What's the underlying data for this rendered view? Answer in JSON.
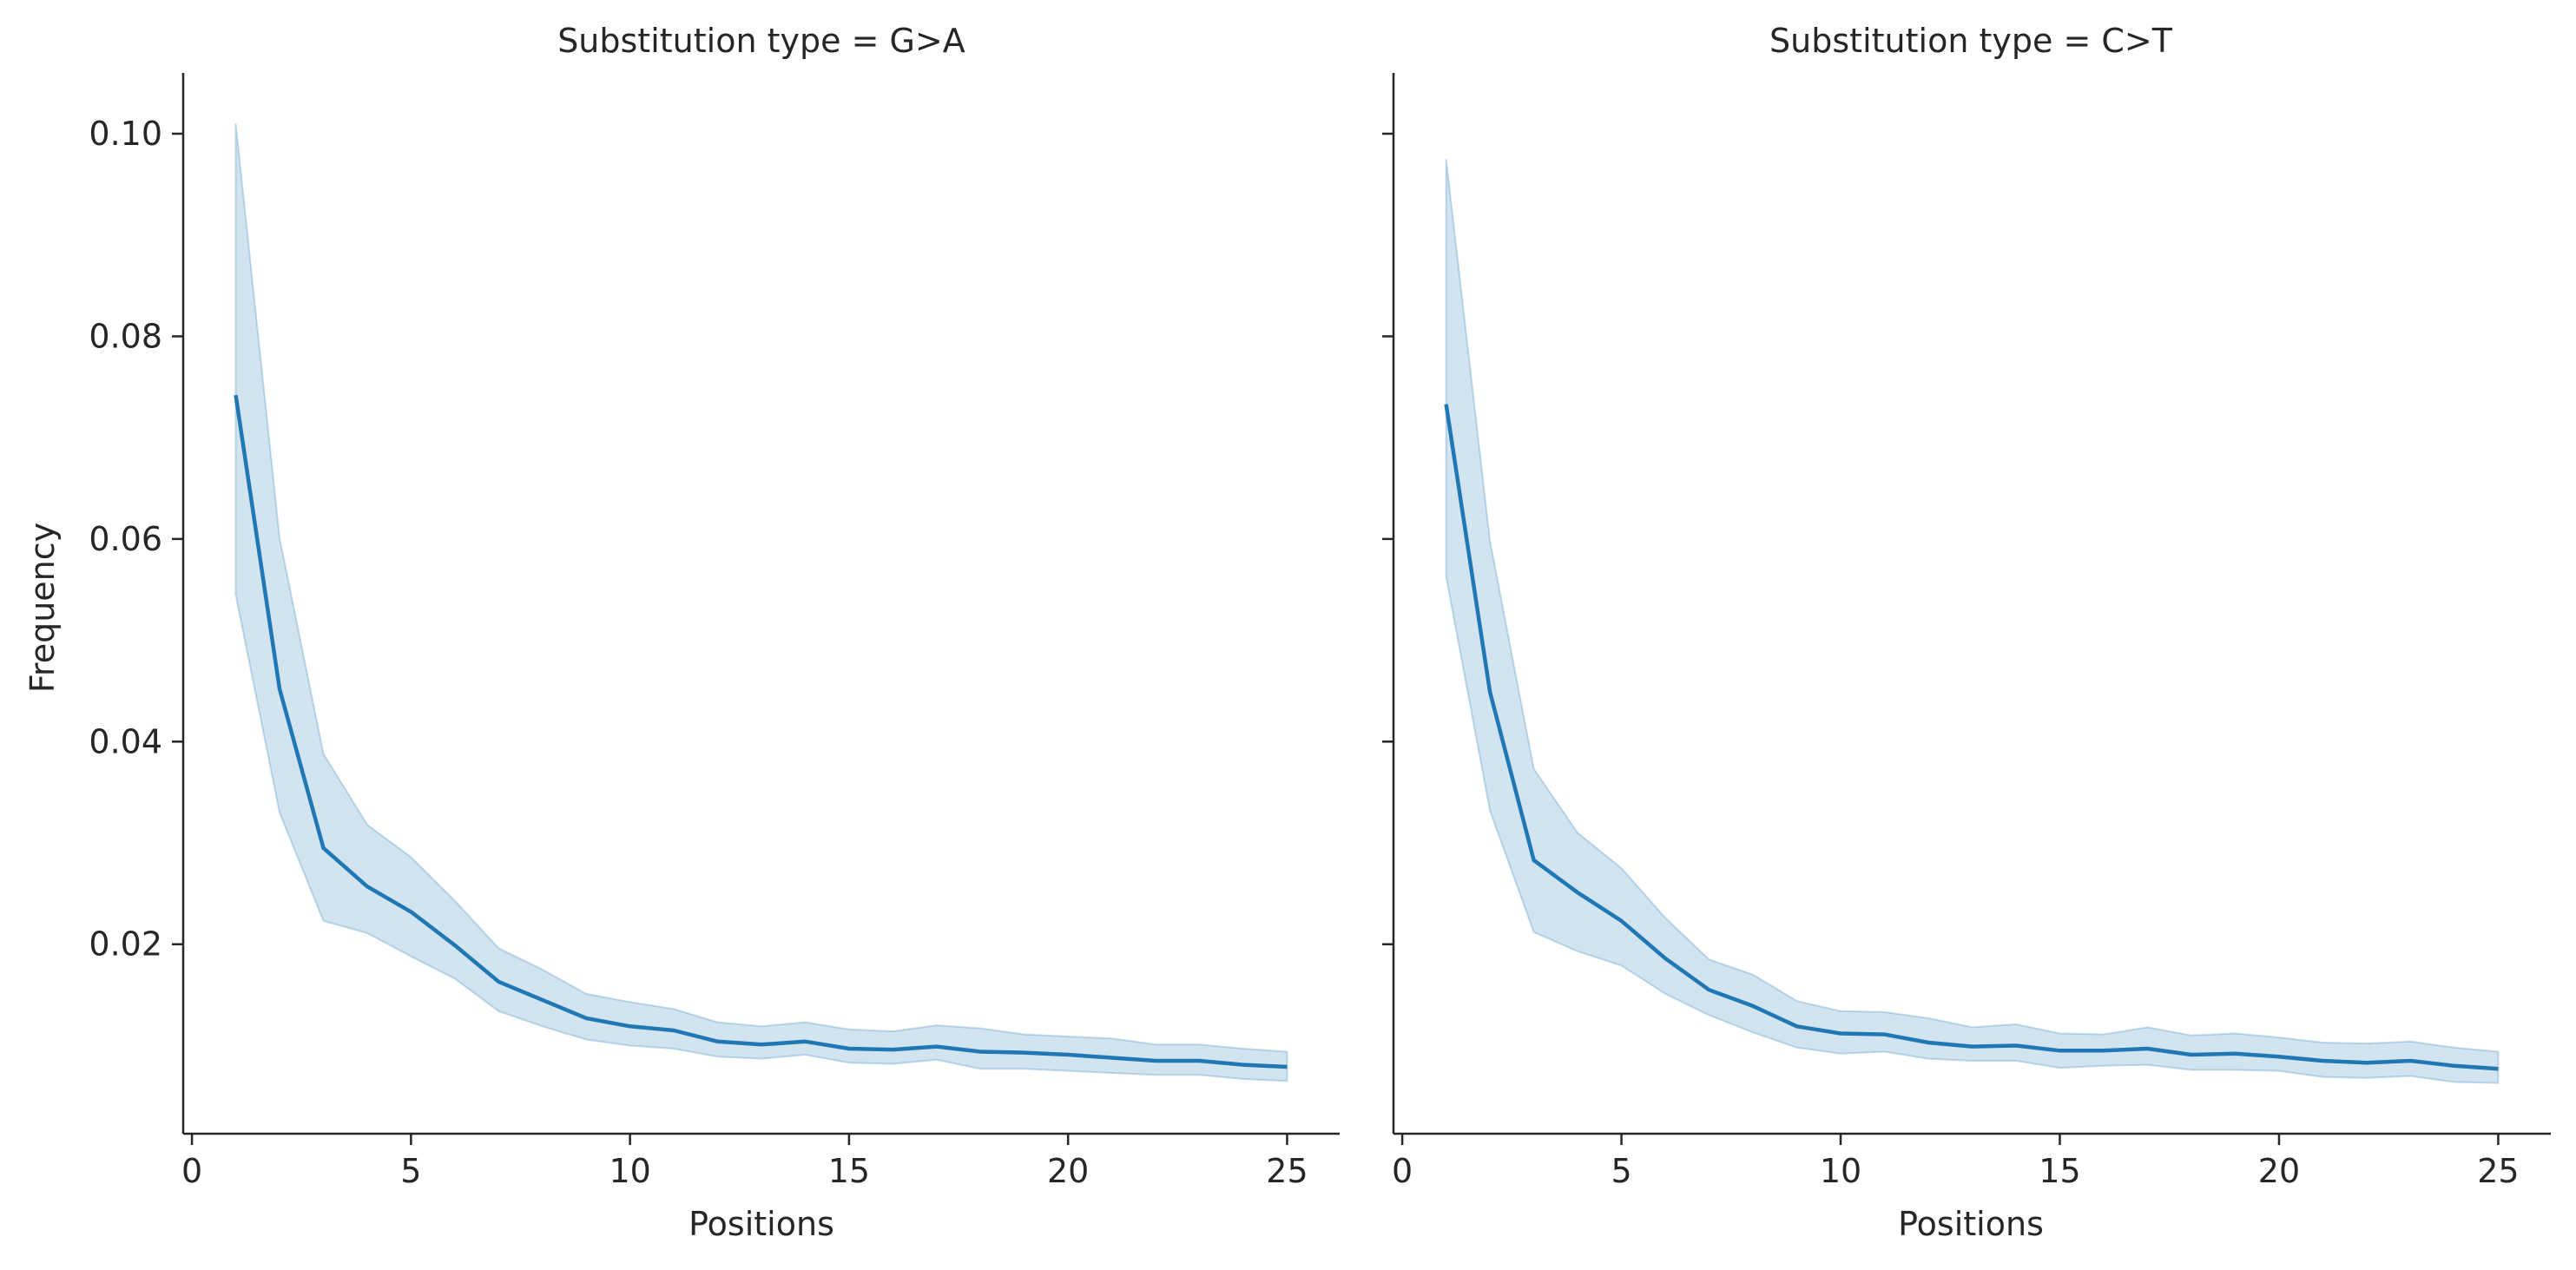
{
  "chart_data": [
    {
      "type": "line",
      "title": "Substitution type = G>A",
      "xlabel": "Positions",
      "ylabel": "Frequency",
      "xlim": [
        -0.2,
        26.2
      ],
      "ylim": [
        0.0013,
        0.106
      ],
      "xticks": [
        0,
        5,
        10,
        15,
        20,
        25
      ],
      "xtick_labels": [
        "0",
        "5",
        "10",
        "15",
        "20",
        "25"
      ],
      "yticks": [
        0.02,
        0.04,
        0.06,
        0.08,
        0.1
      ],
      "ytick_labels": [
        "0.02",
        "0.04",
        "0.06",
        "0.08",
        "0.10"
      ],
      "grid": false,
      "line_color": "#1f77b4",
      "band_color": "#1f77b4",
      "x": [
        1,
        2,
        3,
        4,
        5,
        6,
        7,
        8,
        9,
        10,
        11,
        12,
        13,
        14,
        15,
        16,
        17,
        18,
        19,
        20,
        21,
        22,
        23,
        24,
        25
      ],
      "y": [
        0.0742,
        0.0452,
        0.0295,
        0.0257,
        0.0232,
        0.0199,
        0.0163,
        0.0145,
        0.0127,
        0.0119,
        0.0115,
        0.0104,
        0.0101,
        0.0104,
        0.0097,
        0.0096,
        0.0099,
        0.0094,
        0.0093,
        0.0091,
        0.0088,
        0.0085,
        0.0085,
        0.0081,
        0.0079
      ],
      "lower": [
        0.0545,
        0.033,
        0.0223,
        0.0211,
        0.0188,
        0.0166,
        0.0134,
        0.0119,
        0.0106,
        0.01,
        0.0097,
        0.0089,
        0.0087,
        0.0091,
        0.0083,
        0.0082,
        0.0086,
        0.0077,
        0.0077,
        0.0075,
        0.0073,
        0.0071,
        0.0071,
        0.0067,
        0.0065
      ],
      "upper": [
        0.101,
        0.0601,
        0.0388,
        0.0318,
        0.0286,
        0.0243,
        0.0196,
        0.0175,
        0.0151,
        0.0143,
        0.0136,
        0.0123,
        0.0119,
        0.0123,
        0.0116,
        0.0114,
        0.012,
        0.0117,
        0.0111,
        0.0109,
        0.0107,
        0.0101,
        0.0101,
        0.0097,
        0.0094
      ]
    },
    {
      "type": "line",
      "title": "Substitution type = C>T",
      "xlabel": "Positions",
      "ylabel": "",
      "xlim": [
        -0.2,
        26.2
      ],
      "ylim": [
        0.0013,
        0.106
      ],
      "xticks": [
        0,
        5,
        10,
        15,
        20,
        25
      ],
      "xtick_labels": [
        "0",
        "5",
        "10",
        "15",
        "20",
        "25"
      ],
      "yticks": [
        0.02,
        0.04,
        0.06,
        0.08,
        0.1
      ],
      "ytick_labels": [],
      "grid": false,
      "line_color": "#1f77b4",
      "band_color": "#1f77b4",
      "x": [
        1,
        2,
        3,
        4,
        5,
        6,
        7,
        8,
        9,
        10,
        11,
        12,
        13,
        14,
        15,
        16,
        17,
        18,
        19,
        20,
        21,
        22,
        23,
        24,
        25
      ],
      "y": [
        0.0733,
        0.0449,
        0.0283,
        0.0251,
        0.0223,
        0.0186,
        0.0155,
        0.0139,
        0.0119,
        0.0112,
        0.0111,
        0.0103,
        0.0099,
        0.01,
        0.0095,
        0.0095,
        0.0097,
        0.0091,
        0.0092,
        0.0089,
        0.0085,
        0.0083,
        0.0085,
        0.008,
        0.0077
      ],
      "lower": [
        0.0563,
        0.0332,
        0.0212,
        0.0193,
        0.0179,
        0.0151,
        0.013,
        0.0113,
        0.0098,
        0.0092,
        0.0094,
        0.0087,
        0.0085,
        0.0085,
        0.0078,
        0.008,
        0.0081,
        0.0076,
        0.0076,
        0.0075,
        0.0069,
        0.0068,
        0.007,
        0.0064,
        0.0063
      ],
      "upper": [
        0.0975,
        0.0598,
        0.0373,
        0.031,
        0.0275,
        0.0226,
        0.0185,
        0.017,
        0.0144,
        0.0134,
        0.0133,
        0.0127,
        0.0118,
        0.0121,
        0.0112,
        0.0111,
        0.0118,
        0.011,
        0.0112,
        0.0108,
        0.0103,
        0.0102,
        0.0104,
        0.0098,
        0.0094
      ]
    }
  ]
}
